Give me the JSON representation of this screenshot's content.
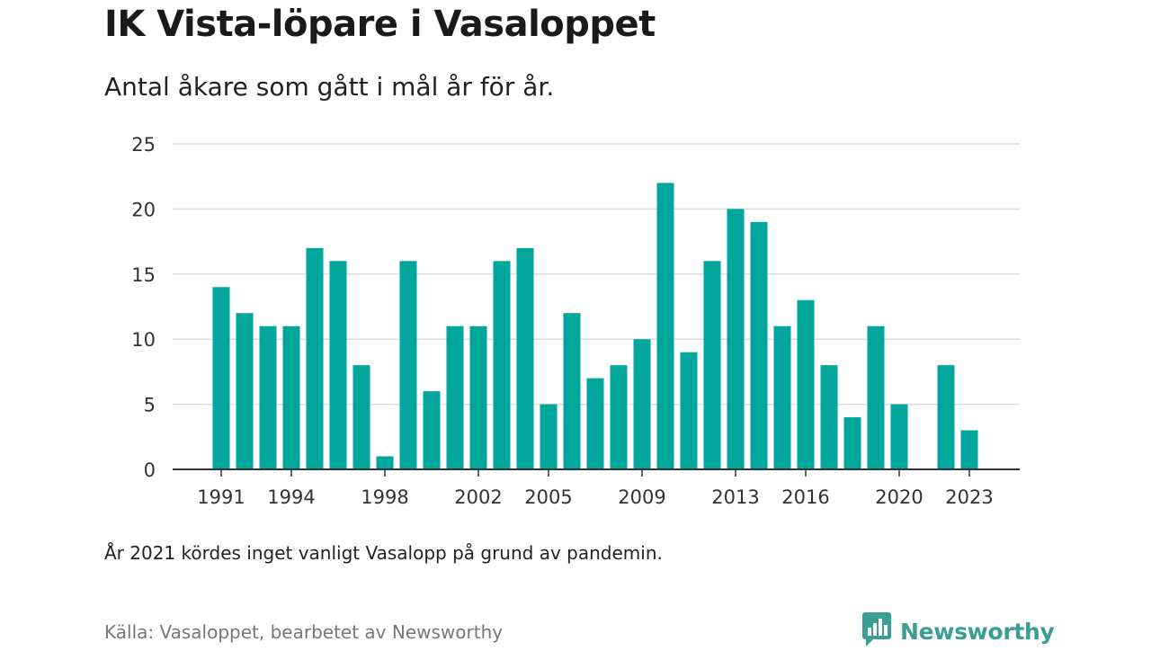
{
  "header": {
    "title": "IK Vista-löpare i Vasaloppet",
    "subtitle": "Antal åkare som gått i mål år för år."
  },
  "footer": {
    "note": "År 2021 kördes inget vanligt Vasalopp på grund av pandemin.",
    "source": "Källa: Vasaloppet, bearbetet av Newsworthy",
    "brand": "Newsworthy",
    "brand_icon": "newsworthy-logo-icon"
  },
  "colors": {
    "bar": "#00a59b",
    "grid": "#dddddd",
    "baseline": "#333333",
    "brand": "#3a9e94"
  },
  "chart_data": {
    "type": "bar",
    "title": "IK Vista-löpare i Vasaloppet",
    "subtitle": "Antal åkare som gått i mål år för år.",
    "xlabel": "",
    "ylabel": "",
    "ylim": [
      0,
      25
    ],
    "yticks": [
      0,
      5,
      10,
      15,
      20,
      25
    ],
    "xticks": [
      1991,
      1994,
      1998,
      2002,
      2005,
      2009,
      2013,
      2016,
      2020,
      2023
    ],
    "grid": true,
    "x": [
      1991,
      1992,
      1993,
      1994,
      1995,
      1996,
      1997,
      1998,
      1999,
      2000,
      2001,
      2002,
      2003,
      2004,
      2005,
      2006,
      2007,
      2008,
      2009,
      2010,
      2011,
      2012,
      2013,
      2014,
      2015,
      2016,
      2017,
      2018,
      2019,
      2020,
      2021,
      2022,
      2023
    ],
    "values": [
      14,
      12,
      11,
      11,
      17,
      16,
      8,
      1,
      16,
      6,
      11,
      11,
      16,
      17,
      5,
      12,
      7,
      8,
      10,
      22,
      9,
      16,
      20,
      19,
      11,
      13,
      8,
      4,
      11,
      5,
      null,
      8,
      3
    ]
  }
}
